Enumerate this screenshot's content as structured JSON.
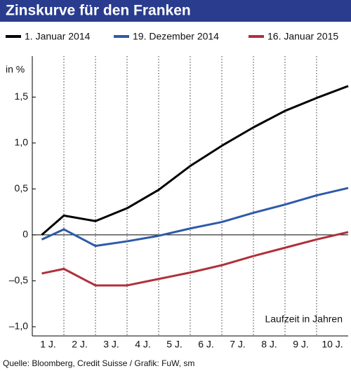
{
  "chart_data": {
    "type": "line",
    "title": "Zinskurve für den Franken",
    "y_axis_label": "in %",
    "x_axis_label": "Laufzeit in Jahren",
    "source": "Quelle: Bloomberg, Credit Suisse / Grafik: FuW, sm",
    "x": [
      0.8,
      1.5,
      2.5,
      3.5,
      4.5,
      5.5,
      6.5,
      7.5,
      8.5,
      9.5,
      10.5
    ],
    "xlim": [
      0.5,
      10.5
    ],
    "xticks": [
      {
        "value": 1,
        "label": "1 J."
      },
      {
        "value": 2,
        "label": "2 J."
      },
      {
        "value": 3,
        "label": "3 J."
      },
      {
        "value": 4,
        "label": "4 J."
      },
      {
        "value": 5,
        "label": "5 J."
      },
      {
        "value": 6,
        "label": "6 J."
      },
      {
        "value": 7,
        "label": "7 J."
      },
      {
        "value": 8,
        "label": "8 J."
      },
      {
        "value": 9,
        "label": "9 J."
      },
      {
        "value": 10,
        "label": "10 J."
      }
    ],
    "xgrid": [
      1.5,
      2.5,
      3.5,
      4.5,
      5.5,
      6.5,
      7.5,
      8.5,
      9.5
    ],
    "ylim": [
      -1.1,
      1.9
    ],
    "yticks": [
      {
        "value": 1.5,
        "label": "1,5"
      },
      {
        "value": 1.0,
        "label": "1,0"
      },
      {
        "value": 0.5,
        "label": "0,5"
      },
      0,
      {
        "value": -0.5,
        "label": "–0,5"
      },
      {
        "value": -1.0,
        "label": "–1,0"
      }
    ],
    "series": [
      {
        "name": "1. Januar 2014",
        "color": "#000000",
        "values": [
          0,
          0.21,
          0.15,
          0.29,
          0.49,
          0.75,
          0.97,
          1.17,
          1.35,
          1.49,
          1.62
        ]
      },
      {
        "name": "19. Dezember 2014",
        "color": "#2f5aa8",
        "values": [
          -0.05,
          0.06,
          -0.12,
          -0.07,
          -0.01,
          0.07,
          0.14,
          0.24,
          0.33,
          0.43,
          0.51
        ]
      },
      {
        "name": "16. Januar 2015",
        "color": "#b0303a",
        "values": [
          -0.42,
          -0.37,
          -0.55,
          -0.55,
          -0.48,
          -0.41,
          -0.33,
          -0.23,
          -0.14,
          -0.05,
          0.03
        ]
      }
    ]
  }
}
